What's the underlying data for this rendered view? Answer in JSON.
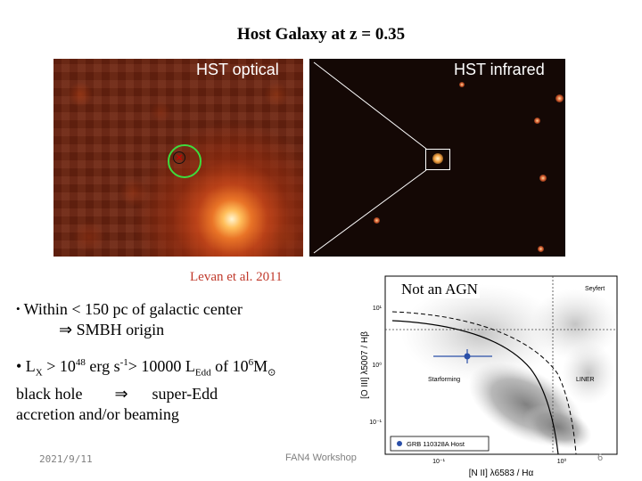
{
  "title": "Host Galaxy at z = 0.35",
  "panels": {
    "optical_label": "HST optical",
    "infrared_label": "HST infrared"
  },
  "citation": "Levan et al. 2011",
  "bullets": {
    "b1_dot": "•",
    "b1_line1": "Within < 150 pc of galactic center",
    "b1_line2": "⇒ SMBH origin",
    "b2_prefix": "• L",
    "b2_sub1": "X",
    "b2_mid1": " > 10",
    "b2_sup1": "48",
    "b2_mid2": " erg s",
    "b2_sup2": "-1",
    "b2_mid3": "> 10000 L",
    "b2_sub2": "Edd",
    "b2_mid4": " of 10",
    "b2_sup3": "6",
    "b2_mid5": "M",
    "b2_sub3": "⊙",
    "b2_line2": "black hole        ⇒      super-Edd",
    "b2_line3": "accretion and/or beaming"
  },
  "agn_label": "Not an AGN",
  "footer": {
    "date": "2021/9/11",
    "center": "FAN4 Workshop",
    "page": "6"
  },
  "bpt": {
    "ylabel": "[O III] λ5007 / Hβ",
    "xlabel": "[N II] λ6583 / Hα",
    "region_seyfert": "Seyfert",
    "region_starforming": "Starforming",
    "region_liner": "LINER",
    "legend": "GRB 110328A Host",
    "yticks": [
      "10¹",
      "10⁰",
      "10⁻¹"
    ],
    "xticks": [
      "10⁻¹",
      "10⁰"
    ]
  },
  "colors": {
    "citation": "#c0392b",
    "green_circle": "#3ddc3d",
    "host_point": "#2a4fa8"
  }
}
